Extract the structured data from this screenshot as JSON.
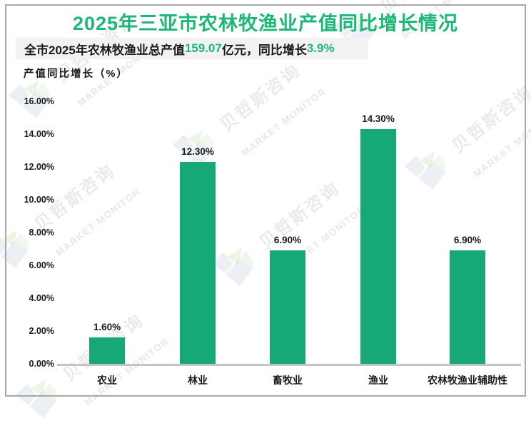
{
  "header": {
    "title": "2025年三亚市农林牧渔业产值同比增长情况",
    "title_color": "#1db778"
  },
  "subtitle": {
    "segments": [
      {
        "text": "全市2025年农林牧渔业总产值",
        "accent": false
      },
      {
        "text": "159.07",
        "accent": true
      },
      {
        "text": "亿元，同比增长",
        "accent": false
      },
      {
        "text": "3.9%",
        "accent": true
      }
    ],
    "accent_color": "#1db778",
    "background": "#f2f2f2"
  },
  "chart_data": {
    "type": "bar",
    "title": "2025年三亚市农林牧渔业产值同比增长情况",
    "ylabel": "产值同比增长（%）",
    "xlabel": "",
    "categories": [
      "农业",
      "林业",
      "畜牧业",
      "渔业",
      "农林牧渔业辅助性"
    ],
    "values": [
      1.6,
      12.3,
      6.9,
      14.3,
      6.9
    ],
    "data_labels": [
      "1.60%",
      "12.30%",
      "6.90%",
      "14.30%",
      "6.90%"
    ],
    "ylim": [
      0,
      16
    ],
    "ytick_step": 2,
    "ytick_labels": [
      "0.00%",
      "2.00%",
      "4.00%",
      "6.00%",
      "8.00%",
      "10.00%",
      "12.00%",
      "14.00%",
      "16.00%"
    ],
    "bar_color": "#16a877",
    "axis_color": "#c4c4c4",
    "grid": false,
    "legend": false
  },
  "watermark": {
    "cn": "贝哲斯咨询",
    "en": "MARKET MONITOR"
  }
}
